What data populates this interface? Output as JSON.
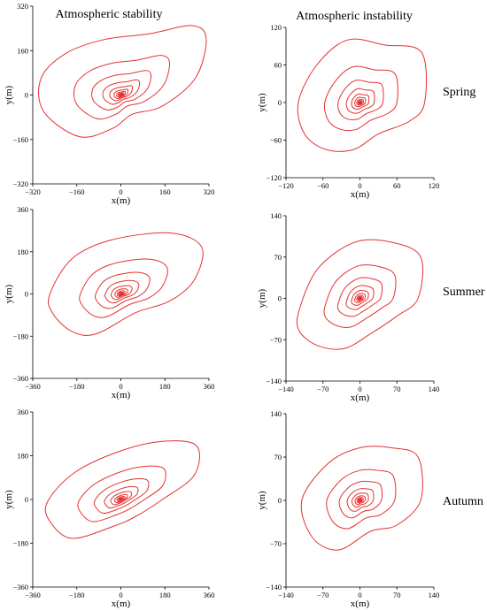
{
  "header": {
    "left_title": "Atmospheric stability",
    "right_title": "Atmospheric instability"
  },
  "seasons": [
    "Spring",
    "Summer",
    "Autumn"
  ],
  "chart_data": [
    {
      "type": "contour",
      "panel": "spring-stability",
      "xlabel": "x(m)",
      "ylabel": "y(m)",
      "xlim": [
        -320,
        320
      ],
      "ylim": [
        -320,
        320
      ],
      "xticks": [
        -320,
        -160,
        0,
        160,
        320
      ],
      "yticks": [
        -320,
        -160,
        0,
        160,
        320
      ],
      "source": [
        0,
        0
      ],
      "outer_contour": [
        [
          -290,
          60
        ],
        [
          -200,
          150
        ],
        [
          -60,
          200
        ],
        [
          100,
          220
        ],
        [
          260,
          250
        ],
        [
          310,
          200
        ],
        [
          270,
          60
        ],
        [
          150,
          -40
        ],
        [
          40,
          -70
        ],
        [
          -30,
          -120
        ],
        [
          -150,
          -150
        ],
        [
          -280,
          -60
        ]
      ],
      "levels": 11
    },
    {
      "type": "contour",
      "panel": "spring-instability",
      "xlabel": "x(m)",
      "ylabel": "y(m)",
      "xlim": [
        -120,
        120
      ],
      "ylim": [
        -120,
        120
      ],
      "xticks": [
        -120,
        -60,
        0,
        60,
        120
      ],
      "yticks": [
        -120,
        -60,
        0,
        60,
        120
      ],
      "source": [
        0,
        0
      ],
      "outer_contour": [
        [
          -100,
          0
        ],
        [
          -70,
          60
        ],
        [
          -20,
          100
        ],
        [
          40,
          92
        ],
        [
          100,
          80
        ],
        [
          105,
          0
        ],
        [
          80,
          -30
        ],
        [
          30,
          -50
        ],
        [
          -10,
          -75
        ],
        [
          -55,
          -75
        ],
        [
          -90,
          -50
        ]
      ],
      "levels": 11
    },
    {
      "type": "contour",
      "panel": "summer-stability",
      "xlabel": "x(m)",
      "ylabel": "y(m)",
      "xlim": [
        -360,
        360
      ],
      "ylim": [
        -360,
        360
      ],
      "xticks": [
        -360,
        -180,
        0,
        180,
        360
      ],
      "yticks": [
        -360,
        -180,
        0,
        180,
        360
      ],
      "source": [
        0,
        0
      ],
      "outer_contour": [
        [
          -290,
          0
        ],
        [
          -200,
          150
        ],
        [
          -40,
          230
        ],
        [
          200,
          260
        ],
        [
          330,
          200
        ],
        [
          300,
          60
        ],
        [
          200,
          -30
        ],
        [
          60,
          -80
        ],
        [
          -100,
          -170
        ],
        [
          -200,
          -160
        ],
        [
          -280,
          -80
        ]
      ],
      "levels": 11
    },
    {
      "type": "contour",
      "panel": "summer-instability",
      "xlabel": "x(m)",
      "ylabel": "y(m)",
      "xlim": [
        -140,
        140
      ],
      "ylim": [
        -140,
        140
      ],
      "xticks": [
        -140,
        -70,
        0,
        70,
        140
      ],
      "yticks": [
        -140,
        -70,
        0,
        70,
        140
      ],
      "source": [
        0,
        0
      ],
      "outer_contour": [
        [
          -115,
          -20
        ],
        [
          -80,
          50
        ],
        [
          -10,
          95
        ],
        [
          60,
          95
        ],
        [
          115,
          70
        ],
        [
          110,
          0
        ],
        [
          70,
          -30
        ],
        [
          20,
          -60
        ],
        [
          -30,
          -85
        ],
        [
          -80,
          -80
        ],
        [
          -115,
          -55
        ]
      ],
      "levels": 11
    },
    {
      "type": "contour",
      "panel": "autumn-stability",
      "xlabel": "x(m)",
      "ylabel": "y(m)",
      "xlim": [
        -360,
        360
      ],
      "ylim": [
        -360,
        360
      ],
      "xticks": [
        -360,
        -180,
        0,
        180,
        360
      ],
      "yticks": [
        -360,
        -180,
        0,
        180,
        360
      ],
      "source": [
        0,
        0
      ],
      "outer_contour": [
        [
          -300,
          -10
        ],
        [
          -190,
          110
        ],
        [
          0,
          200
        ],
        [
          180,
          240
        ],
        [
          310,
          220
        ],
        [
          300,
          100
        ],
        [
          170,
          0
        ],
        [
          60,
          -70
        ],
        [
          -30,
          -110
        ],
        [
          -200,
          -160
        ],
        [
          -290,
          -90
        ]
      ],
      "levels": 11
    },
    {
      "type": "contour",
      "panel": "autumn-instability",
      "xlabel": "x(m)",
      "ylabel": "y(m)",
      "xlim": [
        -140,
        140
      ],
      "ylim": [
        -140,
        140
      ],
      "xticks": [
        -140,
        -70,
        0,
        70,
        140
      ],
      "yticks": [
        -140,
        -70,
        0,
        70,
        140
      ],
      "source": [
        0,
        0
      ],
      "outer_contour": [
        [
          -110,
          0
        ],
        [
          -60,
          60
        ],
        [
          0,
          85
        ],
        [
          60,
          85
        ],
        [
          110,
          70
        ],
        [
          115,
          0
        ],
        [
          70,
          -40
        ],
        [
          20,
          -50
        ],
        [
          -40,
          -80
        ],
        [
          -90,
          -60
        ]
      ],
      "levels": 11
    }
  ]
}
